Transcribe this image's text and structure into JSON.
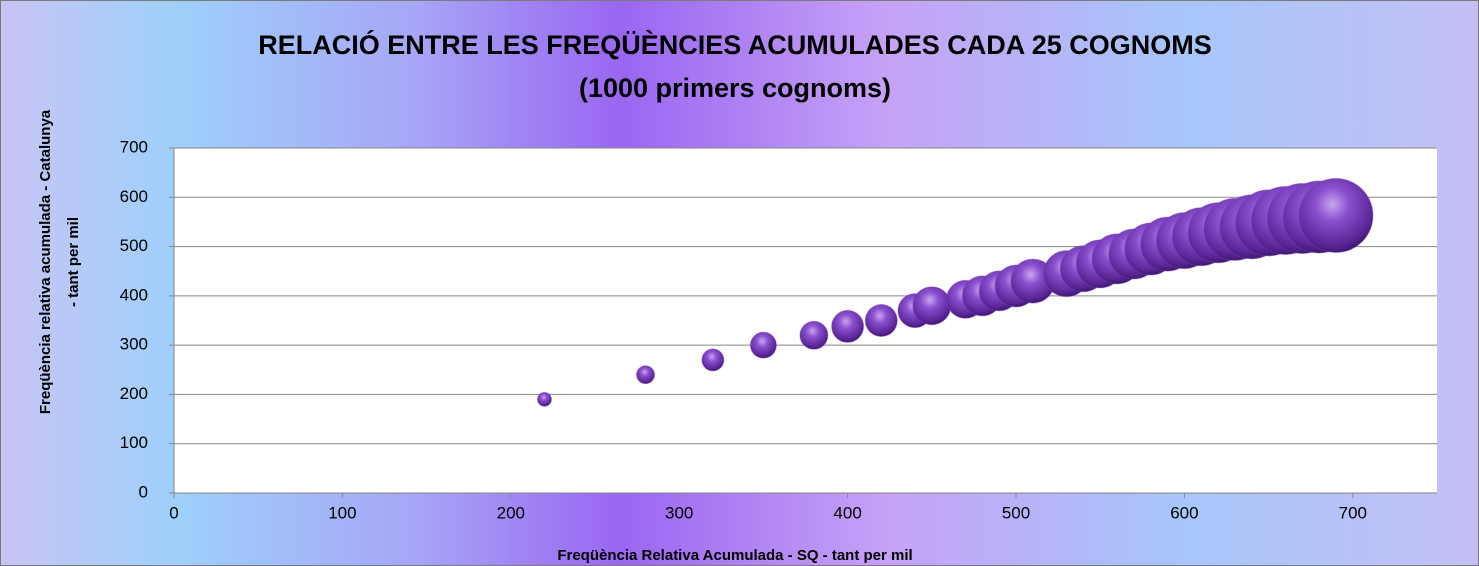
{
  "chart_data": {
    "type": "bubble",
    "title": "RELACIÓ ENTRE LES FREQÜÈNCIES ACUMULADES CADA 25 COGNOMS",
    "subtitle": "(1000 primers cognoms)",
    "x_label": "Freqüència Relativa Acumulada - SQ - tant per mil",
    "y_label": [
      "Freqüència relativa acumulada - Catalunya",
      "- tant per mil"
    ],
    "color": "#7a3fc0",
    "xlim": [
      0,
      750
    ],
    "xticks": [
      0,
      100,
      200,
      300,
      400,
      500,
      600,
      700
    ],
    "ylim": [
      0,
      700
    ],
    "yticks": [
      0,
      100,
      200,
      300,
      400,
      500,
      600,
      700
    ],
    "grid": true,
    "x": [
      220,
      280,
      320,
      350,
      380,
      400,
      420,
      440,
      450,
      470,
      480,
      490,
      500,
      510,
      530,
      540,
      550,
      560,
      570,
      580,
      590,
      600,
      610,
      620,
      630,
      640,
      650,
      660,
      670,
      680,
      690
    ],
    "values": [
      190,
      240,
      270,
      300,
      320,
      338,
      350,
      370,
      380,
      393,
      400,
      410,
      420,
      430,
      445,
      455,
      465,
      475,
      485,
      495,
      505,
      512,
      520,
      528,
      535,
      540,
      548,
      553,
      557,
      560,
      563
    ],
    "sizes": [
      49,
      81,
      121,
      169,
      196,
      256,
      256,
      289,
      361,
      361,
      400,
      400,
      441,
      484,
      529,
      529,
      576,
      625,
      625,
      676,
      729,
      784,
      841,
      900,
      961,
      1024,
      1089,
      1156,
      1225,
      1296,
      1369
    ]
  }
}
